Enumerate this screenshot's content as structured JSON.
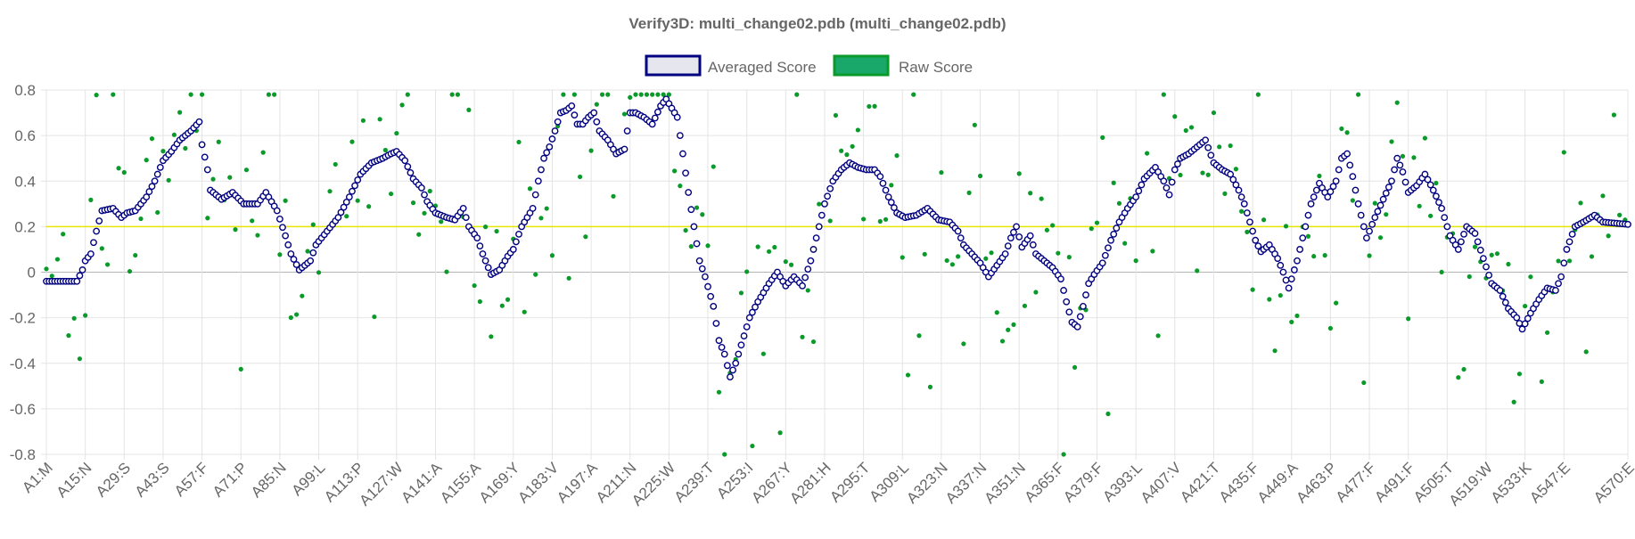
{
  "chart_data": {
    "type": "scatter",
    "title": "Verify3D: multi_change02.pdb (multi_change02.pdb)",
    "ylim": [
      -0.8,
      0.8
    ],
    "ytick_values": [
      -0.8,
      -0.6,
      -0.4,
      -0.2,
      0,
      0.2,
      0.4,
      0.6,
      0.8
    ],
    "ytick_labels": [
      "-0.8",
      "-0.6",
      "-0.4",
      "-0.2",
      "0",
      "0.2",
      "0.4",
      "0.6",
      "0.8"
    ],
    "x_range": [
      1,
      570
    ],
    "xticks": [
      {
        "pos": 1,
        "label": "A1:M"
      },
      {
        "pos": 15,
        "label": "A15:N"
      },
      {
        "pos": 29,
        "label": "A29:S"
      },
      {
        "pos": 43,
        "label": "A43:S"
      },
      {
        "pos": 57,
        "label": "A57:F"
      },
      {
        "pos": 71,
        "label": "A71:P"
      },
      {
        "pos": 85,
        "label": "A85:N"
      },
      {
        "pos": 99,
        "label": "A99:L"
      },
      {
        "pos": 113,
        "label": "A113:P"
      },
      {
        "pos": 127,
        "label": "A127:W"
      },
      {
        "pos": 141,
        "label": "A141:A"
      },
      {
        "pos": 155,
        "label": "A155:A"
      },
      {
        "pos": 169,
        "label": "A169:Y"
      },
      {
        "pos": 183,
        "label": "A183:V"
      },
      {
        "pos": 197,
        "label": "A197:A"
      },
      {
        "pos": 211,
        "label": "A211:N"
      },
      {
        "pos": 225,
        "label": "A225:W"
      },
      {
        "pos": 239,
        "label": "A239:T"
      },
      {
        "pos": 253,
        "label": "A253:I"
      },
      {
        "pos": 267,
        "label": "A267:Y"
      },
      {
        "pos": 281,
        "label": "A281:H"
      },
      {
        "pos": 295,
        "label": "A295:T"
      },
      {
        "pos": 309,
        "label": "A309:L"
      },
      {
        "pos": 323,
        "label": "A323:N"
      },
      {
        "pos": 337,
        "label": "A337:N"
      },
      {
        "pos": 351,
        "label": "A351:N"
      },
      {
        "pos": 365,
        "label": "A365:F"
      },
      {
        "pos": 379,
        "label": "A379:F"
      },
      {
        "pos": 393,
        "label": "A393:L"
      },
      {
        "pos": 407,
        "label": "A407:V"
      },
      {
        "pos": 421,
        "label": "A421:T"
      },
      {
        "pos": 435,
        "label": "A435:F"
      },
      {
        "pos": 449,
        "label": "A449:A"
      },
      {
        "pos": 463,
        "label": "A463:P"
      },
      {
        "pos": 477,
        "label": "A477:F"
      },
      {
        "pos": 491,
        "label": "A491:F"
      },
      {
        "pos": 505,
        "label": "A505:T"
      },
      {
        "pos": 519,
        "label": "A519:W"
      },
      {
        "pos": 533,
        "label": "A533:K"
      },
      {
        "pos": 547,
        "label": "A547:E"
      },
      {
        "pos": 570,
        "label": "A570:E"
      }
    ],
    "reference_line": {
      "y": 0.2,
      "color": "#e6e600"
    },
    "legend": {
      "position": "top-center",
      "entries": [
        {
          "name": "Averaged Score",
          "fill": "#e6e6ee",
          "stroke": "#000080"
        },
        {
          "name": "Raw Score",
          "fill": "#1aa86a",
          "stroke": "#0a9a2a"
        }
      ]
    },
    "series": [
      {
        "name": "Averaged Score",
        "style": "hollow-circle",
        "color": "#000080",
        "anchors": [
          [
            1,
            -0.04
          ],
          [
            12,
            -0.04
          ],
          [
            14,
            0.01
          ],
          [
            15,
            0.05
          ],
          [
            17,
            0.08
          ],
          [
            19,
            0.18
          ],
          [
            21,
            0.27
          ],
          [
            25,
            0.28
          ],
          [
            28,
            0.24
          ],
          [
            30,
            0.26
          ],
          [
            33,
            0.27
          ],
          [
            37,
            0.33
          ],
          [
            40,
            0.4
          ],
          [
            43,
            0.49
          ],
          [
            46,
            0.53
          ],
          [
            49,
            0.58
          ],
          [
            53,
            0.62
          ],
          [
            56,
            0.66
          ],
          [
            57,
            0.56
          ],
          [
            59,
            0.45
          ],
          [
            60,
            0.36
          ],
          [
            64,
            0.32
          ],
          [
            68,
            0.35
          ],
          [
            72,
            0.3
          ],
          [
            77,
            0.3
          ],
          [
            80,
            0.35
          ],
          [
            84,
            0.27
          ],
          [
            87,
            0.16
          ],
          [
            89,
            0.08
          ],
          [
            92,
            0.01
          ],
          [
            96,
            0.05
          ],
          [
            98,
            0.12
          ],
          [
            102,
            0.18
          ],
          [
            106,
            0.24
          ],
          [
            110,
            0.33
          ],
          [
            114,
            0.43
          ],
          [
            118,
            0.48
          ],
          [
            122,
            0.5
          ],
          [
            125,
            0.52
          ],
          [
            127,
            0.53
          ],
          [
            130,
            0.49
          ],
          [
            133,
            0.41
          ],
          [
            136,
            0.37
          ],
          [
            138,
            0.31
          ],
          [
            141,
            0.26
          ],
          [
            145,
            0.24
          ],
          [
            148,
            0.23
          ],
          [
            151,
            0.28
          ],
          [
            153,
            0.2
          ],
          [
            156,
            0.15
          ],
          [
            158,
            0.08
          ],
          [
            161,
            -0.01
          ],
          [
            164,
            0.01
          ],
          [
            167,
            0.07
          ],
          [
            169,
            0.1
          ],
          [
            172,
            0.2
          ],
          [
            176,
            0.28
          ],
          [
            178,
            0.4
          ],
          [
            180,
            0.5
          ],
          [
            182,
            0.55
          ],
          [
            184,
            0.62
          ],
          [
            186,
            0.7
          ],
          [
            188,
            0.71
          ],
          [
            190,
            0.73
          ],
          [
            192,
            0.65
          ],
          [
            194,
            0.65
          ],
          [
            196,
            0.68
          ],
          [
            198,
            0.7
          ],
          [
            200,
            0.62
          ],
          [
            203,
            0.58
          ],
          [
            206,
            0.52
          ],
          [
            209,
            0.54
          ],
          [
            211,
            0.7
          ],
          [
            213,
            0.7
          ],
          [
            216,
            0.68
          ],
          [
            219,
            0.65
          ],
          [
            222,
            0.73
          ],
          [
            224,
            0.76
          ],
          [
            226,
            0.72
          ],
          [
            228,
            0.68
          ],
          [
            230,
            0.52
          ],
          [
            232,
            0.35
          ],
          [
            234,
            0.2
          ],
          [
            236,
            0.05
          ],
          [
            238,
            -0.02
          ],
          [
            241,
            -0.15
          ],
          [
            243,
            -0.3
          ],
          [
            245,
            -0.36
          ],
          [
            247,
            -0.46
          ],
          [
            249,
            -0.4
          ],
          [
            251,
            -0.32
          ],
          [
            254,
            -0.2
          ],
          [
            257,
            -0.13
          ],
          [
            261,
            -0.05
          ],
          [
            264,
            0.0
          ],
          [
            267,
            -0.06
          ],
          [
            270,
            -0.02
          ],
          [
            273,
            -0.06
          ],
          [
            276,
            0.05
          ],
          [
            278,
            0.15
          ],
          [
            281,
            0.3
          ],
          [
            284,
            0.4
          ],
          [
            287,
            0.45
          ],
          [
            290,
            0.48
          ],
          [
            293,
            0.46
          ],
          [
            296,
            0.45
          ],
          [
            299,
            0.45
          ],
          [
            301,
            0.42
          ],
          [
            304,
            0.33
          ],
          [
            307,
            0.26
          ],
          [
            310,
            0.24
          ],
          [
            314,
            0.25
          ],
          [
            318,
            0.28
          ],
          [
            322,
            0.23
          ],
          [
            326,
            0.22
          ],
          [
            329,
            0.18
          ],
          [
            331,
            0.12
          ],
          [
            334,
            0.08
          ],
          [
            337,
            0.04
          ],
          [
            340,
            -0.02
          ],
          [
            343,
            0.03
          ],
          [
            346,
            0.08
          ],
          [
            348,
            0.15
          ],
          [
            350,
            0.2
          ],
          [
            352,
            0.11
          ],
          [
            355,
            0.16
          ],
          [
            357,
            0.08
          ],
          [
            360,
            0.05
          ],
          [
            363,
            0.02
          ],
          [
            366,
            -0.03
          ],
          [
            368,
            -0.13
          ],
          [
            370,
            -0.22
          ],
          [
            372,
            -0.24
          ],
          [
            374,
            -0.15
          ],
          [
            376,
            -0.05
          ],
          [
            378,
            -0.01
          ],
          [
            381,
            0.04
          ],
          [
            384,
            0.14
          ],
          [
            387,
            0.22
          ],
          [
            390,
            0.28
          ],
          [
            393,
            0.33
          ],
          [
            396,
            0.41
          ],
          [
            400,
            0.46
          ],
          [
            403,
            0.4
          ],
          [
            405,
            0.34
          ],
          [
            407,
            0.45
          ],
          [
            409,
            0.5
          ],
          [
            412,
            0.52
          ],
          [
            415,
            0.55
          ],
          [
            418,
            0.58
          ],
          [
            421,
            0.48
          ],
          [
            424,
            0.45
          ],
          [
            427,
            0.43
          ],
          [
            430,
            0.36
          ],
          [
            432,
            0.3
          ],
          [
            434,
            0.22
          ],
          [
            436,
            0.14
          ],
          [
            438,
            0.09
          ],
          [
            441,
            0.12
          ],
          [
            444,
            0.06
          ],
          [
            446,
            0.0
          ],
          [
            448,
            -0.07
          ],
          [
            451,
            0.05
          ],
          [
            453,
            0.15
          ],
          [
            456,
            0.3
          ],
          [
            459,
            0.39
          ],
          [
            462,
            0.33
          ],
          [
            465,
            0.4
          ],
          [
            467,
            0.5
          ],
          [
            469,
            0.52
          ],
          [
            471,
            0.42
          ],
          [
            473,
            0.3
          ],
          [
            476,
            0.15
          ],
          [
            479,
            0.24
          ],
          [
            482,
            0.32
          ],
          [
            485,
            0.4
          ],
          [
            487,
            0.5
          ],
          [
            489,
            0.44
          ],
          [
            491,
            0.35
          ],
          [
            494,
            0.38
          ],
          [
            497,
            0.43
          ],
          [
            500,
            0.36
          ],
          [
            503,
            0.28
          ],
          [
            506,
            0.16
          ],
          [
            509,
            0.1
          ],
          [
            512,
            0.2
          ],
          [
            515,
            0.17
          ],
          [
            518,
            0.06
          ],
          [
            521,
            -0.05
          ],
          [
            524,
            -0.08
          ],
          [
            527,
            -0.16
          ],
          [
            530,
            -0.2
          ],
          [
            532,
            -0.25
          ],
          [
            535,
            -0.18
          ],
          [
            538,
            -0.12
          ],
          [
            541,
            -0.07
          ],
          [
            544,
            -0.08
          ],
          [
            546,
            -0.02
          ],
          [
            548,
            0.1
          ],
          [
            551,
            0.2
          ],
          [
            554,
            0.22
          ],
          [
            558,
            0.25
          ],
          [
            561,
            0.22
          ],
          [
            570,
            0.21
          ]
        ]
      },
      {
        "name": "Raw Score",
        "style": "filled-dot",
        "color": "#0a9a2a",
        "seed": 7,
        "noise": 0.28,
        "outlier_rate": 0.18
      }
    ]
  }
}
